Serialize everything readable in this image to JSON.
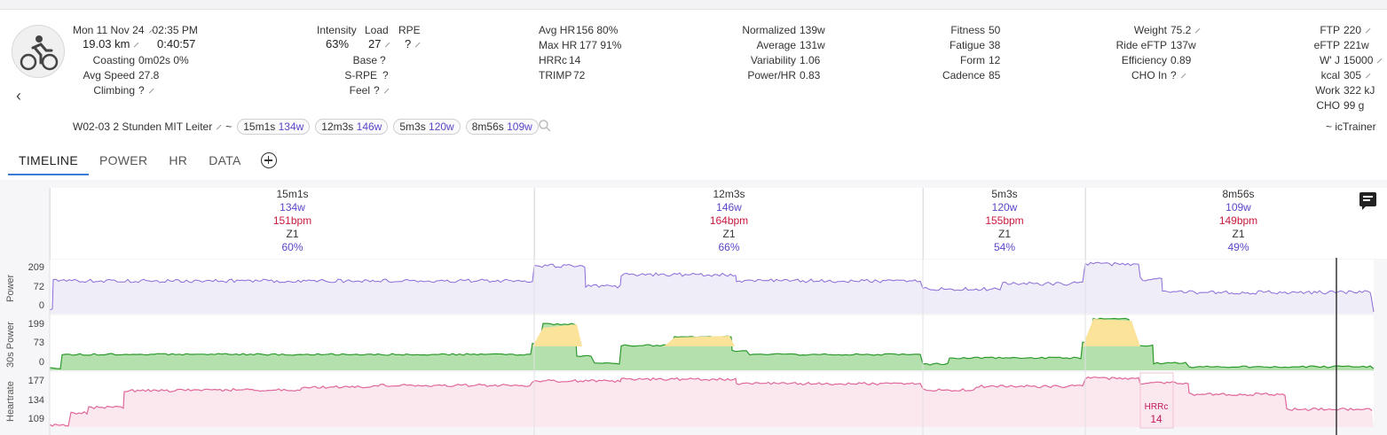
{
  "summary": {
    "date": "Mon 11 Nov 24",
    "time": "02:35 PM",
    "distance": "19.03 km",
    "duration": "0:40:57",
    "coasting_label": "Coasting",
    "coasting_value": "0m02s  0%",
    "avg_speed_label": "Avg Speed",
    "avg_speed_value": "27.8",
    "climbing_label": "Climbing",
    "climbing_value": "?",
    "intensity_label": "Intensity",
    "intensity_value": "63%",
    "load_label": "Load",
    "load_value": "27",
    "rpe_label": "RPE",
    "rpe_value": "?",
    "base_label": "Base",
    "base_value": "?",
    "srpe_label": "S-RPE",
    "srpe_value": "?",
    "feel_label": "Feel",
    "feel_value": "?",
    "avg_hr_label": "Avg HR",
    "avg_hr_value": "156  80%",
    "max_hr_label": "Max HR",
    "max_hr_value": "177  91%",
    "hrrc_label": "HRRc",
    "hrrc_value": "14",
    "trimp_label": "TRIMP",
    "trimp_value": "72",
    "normalized_label": "Normalized",
    "normalized_value": "139w",
    "average_label": "Average",
    "average_value": "131w",
    "variability_label": "Variability",
    "variability_value": "1.06",
    "powerhr_label": "Power/HR",
    "powerhr_value": "0.83",
    "fitness_label": "Fitness",
    "fitness_value": "50",
    "fatigue_label": "Fatigue",
    "fatigue_value": "38",
    "form_label": "Form",
    "form_value": "12",
    "cadence_label": "Cadence",
    "cadence_value": "85",
    "weight_label": "Weight",
    "weight_value": "75.2",
    "ride_eftp_label": "Ride eFTP",
    "ride_eftp_value": "137w",
    "efficiency_label": "Efficiency",
    "efficiency_value": "0.89",
    "cho_in_label": "CHO In",
    "cho_in_value": "?",
    "ftp_label": "FTP",
    "ftp_value": "220",
    "eftp_label": "eFTP",
    "eftp_value": "221w",
    "wj_label": "W' J",
    "wj_value": "15000",
    "kcal_label": "kcal",
    "kcal_value": "305",
    "work_label": "Work",
    "work_value": "322 kJ",
    "cho_label": "CHO",
    "cho_value": "99 g"
  },
  "workout": {
    "name": "W02-03 2 Stunden MIT Leiter",
    "tilde": "~",
    "source": "~ icTrainer",
    "chips": [
      {
        "dur": "15m1s",
        "power": "134w"
      },
      {
        "dur": "12m3s",
        "power": "146w"
      },
      {
        "dur": "5m3s",
        "power": "120w"
      },
      {
        "dur": "8m56s",
        "power": "109w"
      }
    ]
  },
  "tabs": [
    "TIMELINE",
    "POWER",
    "HR",
    "DATA"
  ],
  "intervals": [
    {
      "dur": "15m1s",
      "power": "134w",
      "hr": "151bpm",
      "zone": "Z1",
      "pct": "60%"
    },
    {
      "dur": "12m3s",
      "power": "146w",
      "hr": "164bpm",
      "zone": "Z1",
      "pct": "66%"
    },
    {
      "dur": "5m3s",
      "power": "120w",
      "hr": "155bpm",
      "zone": "Z1",
      "pct": "54%"
    },
    {
      "dur": "8m56s",
      "power": "109w",
      "hr": "149bpm",
      "zone": "Z1",
      "pct": "49%"
    }
  ],
  "charts": {
    "power": {
      "label": "Power",
      "ticks": [
        "209",
        "72",
        "0"
      ]
    },
    "power30": {
      "label": "30s Power",
      "ticks": [
        "199",
        "73",
        "0"
      ]
    },
    "heartrate": {
      "label": "Heartrate",
      "ticks": [
        "177",
        "134",
        "109"
      ]
    },
    "hrrc_box_label": "HRRc",
    "hrrc_box_value": "14"
  },
  "colors": {
    "power_line": "#8a6bd8",
    "power_fill": "#efedf8",
    "green_line": "#2e9a2e",
    "green_fill": "#b4e0ad",
    "yellow_fill": "#fbe39a",
    "hr_line": "#e0679a",
    "hr_fill": "#fbe8ef",
    "accent": "#3a7bd5"
  }
}
